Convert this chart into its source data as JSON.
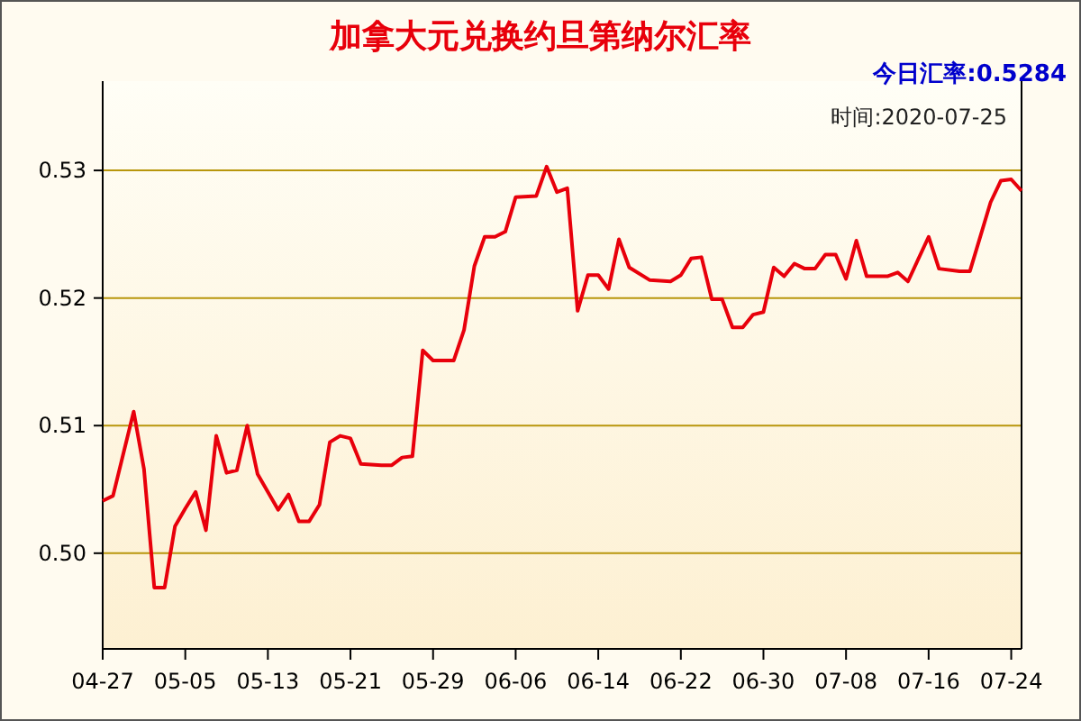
{
  "chart_data": {
    "type": "line",
    "title": "加拿大元兑换约旦第纳尔汇率",
    "subtitle": "今日汇率:0.5284",
    "annotations": [
      "时间:2020-07-25"
    ],
    "x": [
      "2020-04-27",
      "2020-04-28",
      "2020-04-30",
      "2020-05-01",
      "2020-05-02",
      "2020-05-03",
      "2020-05-04",
      "2020-05-05",
      "2020-05-06",
      "2020-05-07",
      "2020-05-08",
      "2020-05-09",
      "2020-05-10",
      "2020-05-11",
      "2020-05-12",
      "2020-05-14",
      "2020-05-15",
      "2020-05-16",
      "2020-05-17",
      "2020-05-18",
      "2020-05-19",
      "2020-05-20",
      "2020-05-21",
      "2020-05-22",
      "2020-05-24",
      "2020-05-25",
      "2020-05-26",
      "2020-05-27",
      "2020-05-28",
      "2020-05-29",
      "2020-05-31",
      "2020-06-01",
      "2020-06-02",
      "2020-06-03",
      "2020-06-04",
      "2020-06-05",
      "2020-06-06",
      "2020-06-08",
      "2020-06-09",
      "2020-06-10",
      "2020-06-11",
      "2020-06-12",
      "2020-06-13",
      "2020-06-14",
      "2020-06-15",
      "2020-06-16",
      "2020-06-17",
      "2020-06-19",
      "2020-06-21",
      "2020-06-22",
      "2020-06-23",
      "2020-06-24",
      "2020-06-25",
      "2020-06-26",
      "2020-06-27",
      "2020-06-28",
      "2020-06-29",
      "2020-06-30",
      "2020-07-01",
      "2020-07-02",
      "2020-07-03",
      "2020-07-04",
      "2020-07-05",
      "2020-07-06",
      "2020-07-07",
      "2020-07-08",
      "2020-07-09",
      "2020-07-10",
      "2020-07-12",
      "2020-07-13",
      "2020-07-14",
      "2020-07-16",
      "2020-07-17",
      "2020-07-19",
      "2020-07-20",
      "2020-07-22",
      "2020-07-23",
      "2020-07-24",
      "2020-07-25"
    ],
    "series": [
      {
        "color": "#e8000b",
        "values": [
          0.5041,
          0.5045,
          0.5111,
          0.5066,
          0.4973,
          0.4973,
          0.5021,
          0.5035,
          0.5048,
          0.5018,
          0.5092,
          0.5063,
          0.5065,
          0.51,
          0.5062,
          0.5034,
          0.5046,
          0.5025,
          0.5025,
          0.5038,
          0.5087,
          0.5092,
          0.509,
          0.507,
          0.5069,
          0.5069,
          0.5075,
          0.5076,
          0.5159,
          0.5151,
          0.5151,
          0.5175,
          0.5225,
          0.5248,
          0.5248,
          0.5252,
          0.5279,
          0.528,
          0.5303,
          0.5283,
          0.5286,
          0.519,
          0.5218,
          0.5218,
          0.5207,
          0.5246,
          0.5224,
          0.5214,
          0.5213,
          0.5218,
          0.5231,
          0.5232,
          0.5199,
          0.5199,
          0.5177,
          0.5177,
          0.5187,
          0.5189,
          0.5224,
          0.5217,
          0.5227,
          0.5223,
          0.5223,
          0.5234,
          0.5234,
          0.5215,
          0.5245,
          0.5217,
          0.5217,
          0.522,
          0.5213,
          0.5248,
          0.5223,
          0.5221,
          0.5221,
          0.5275,
          0.5292,
          0.5293,
          0.5284
        ]
      }
    ],
    "xlim": [
      "2020-04-27",
      "2020-07-25"
    ],
    "xticks": [
      {
        "value": "2020-04-27",
        "label": "04-27"
      },
      {
        "value": "2020-05-05",
        "label": "05-05"
      },
      {
        "value": "2020-05-13",
        "label": "05-13"
      },
      {
        "value": "2020-05-21",
        "label": "05-21"
      },
      {
        "value": "2020-05-29",
        "label": "05-29"
      },
      {
        "value": "2020-06-06",
        "label": "06-06"
      },
      {
        "value": "2020-06-14",
        "label": "06-14"
      },
      {
        "value": "2020-06-22",
        "label": "06-22"
      },
      {
        "value": "2020-06-30",
        "label": "06-30"
      },
      {
        "value": "2020-07-08",
        "label": "07-08"
      },
      {
        "value": "2020-07-16",
        "label": "07-16"
      },
      {
        "value": "2020-07-24",
        "label": "07-24"
      }
    ],
    "ylim": [
      0.4925,
      0.537
    ],
    "yticks": [
      {
        "value": 0.5,
        "label": "0.50"
      },
      {
        "value": 0.51,
        "label": "0.51"
      },
      {
        "value": 0.52,
        "label": "0.52"
      },
      {
        "value": 0.53,
        "label": "0.53"
      }
    ],
    "grid": "y",
    "marker": "none",
    "line_style": "solid"
  }
}
